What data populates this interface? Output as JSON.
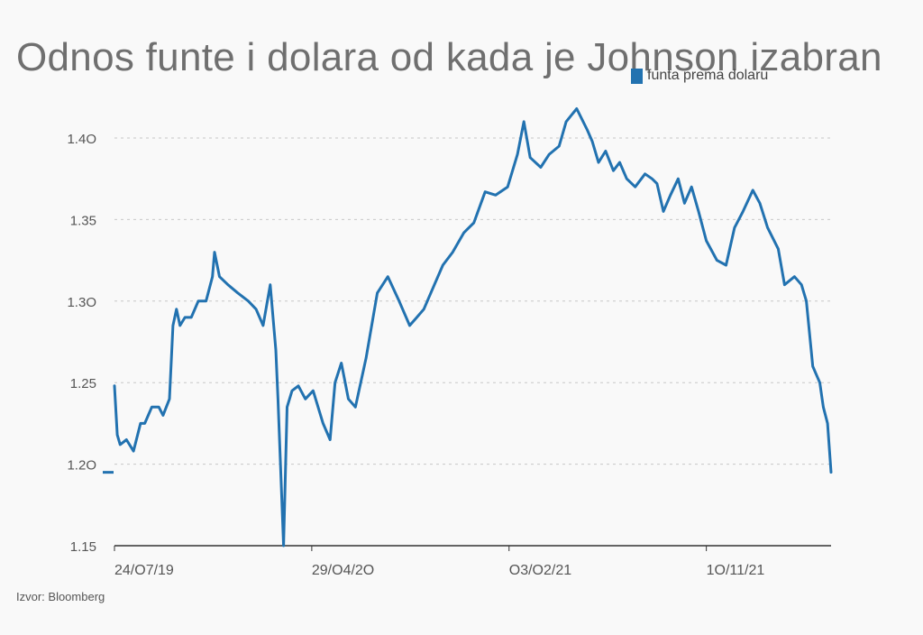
{
  "chart_data": {
    "type": "line",
    "title": "Odnos funte i dolara od kada je Johnson izabran",
    "source": "Izvor: Bloomberg",
    "series_name": "funta prema dolaru",
    "color": "#2272b0",
    "ylim": [
      1.15,
      1.43
    ],
    "y_ticks": [
      {
        "value": 1.15,
        "label": "1.15"
      },
      {
        "value": 1.2,
        "label": "1.2O"
      },
      {
        "value": 1.25,
        "label": "1.25"
      },
      {
        "value": 1.3,
        "label": "1.3O"
      },
      {
        "value": 1.35,
        "label": "1.35"
      },
      {
        "value": 1.4,
        "label": "1.4O"
      }
    ],
    "x_ticks": [
      {
        "label": "24/O7/19",
        "date": "2019-07-24"
      },
      {
        "label": "29/O4/2O",
        "date": "2020-04-29"
      },
      {
        "label": "O3/O2/21",
        "date": "2021-02-03"
      },
      {
        "label": "1O/11/21",
        "date": "2021-11-10"
      }
    ],
    "x": [
      "2019-07-24",
      "2019-07-28",
      "2019-08-01",
      "2019-08-10",
      "2019-08-20",
      "2019-08-30",
      "2019-09-05",
      "2019-09-15",
      "2019-09-25",
      "2019-10-01",
      "2019-10-10",
      "2019-10-15",
      "2019-10-20",
      "2019-10-25",
      "2019-11-01",
      "2019-11-10",
      "2019-11-20",
      "2019-12-01",
      "2019-12-10",
      "2019-12-13",
      "2019-12-20",
      "2020-01-01",
      "2020-01-15",
      "2020-01-30",
      "2020-02-10",
      "2020-02-20",
      "2020-03-01",
      "2020-03-09",
      "2020-03-12",
      "2020-03-20",
      "2020-03-25",
      "2020-04-01",
      "2020-04-10",
      "2020-04-20",
      "2020-05-01",
      "2020-05-15",
      "2020-05-25",
      "2020-06-01",
      "2020-06-10",
      "2020-06-20",
      "2020-06-30",
      "2020-07-15",
      "2020-07-31",
      "2020-08-15",
      "2020-08-31",
      "2020-09-15",
      "2020-09-25",
      "2020-10-05",
      "2020-10-20",
      "2020-11-01",
      "2020-11-15",
      "2020-12-01",
      "2020-12-15",
      "2020-12-31",
      "2021-01-15",
      "2021-02-01",
      "2021-02-15",
      "2021-02-24",
      "2021-03-05",
      "2021-03-20",
      "2021-04-01",
      "2021-04-15",
      "2021-04-25",
      "2021-05-10",
      "2021-05-25",
      "2021-06-01",
      "2021-06-10",
      "2021-06-20",
      "2021-07-01",
      "2021-07-10",
      "2021-07-20",
      "2021-08-01",
      "2021-08-15",
      "2021-08-25",
      "2021-09-01",
      "2021-09-10",
      "2021-09-20",
      "2021-10-01",
      "2021-10-10",
      "2021-10-20",
      "2021-10-30",
      "2021-11-10",
      "2021-11-25",
      "2021-12-08",
      "2021-12-20",
      "2022-01-01",
      "2022-01-15",
      "2022-01-25",
      "2022-02-05",
      "2022-02-20",
      "2022-03-01",
      "2022-03-15",
      "2022-03-25",
      "2022-04-01",
      "2022-04-10",
      "2022-04-15",
      "2022-04-20",
      "2022-04-25",
      "2022-05-01",
      "2022-05-06"
    ],
    "y": [
      1.248,
      1.218,
      1.212,
      1.215,
      1.208,
      1.225,
      1.225,
      1.235,
      1.235,
      1.23,
      1.24,
      1.285,
      1.295,
      1.285,
      1.29,
      1.29,
      1.3,
      1.3,
      1.315,
      1.33,
      1.315,
      1.31,
      1.305,
      1.3,
      1.295,
      1.285,
      1.31,
      1.27,
      1.24,
      1.15,
      1.235,
      1.245,
      1.248,
      1.24,
      1.245,
      1.225,
      1.215,
      1.25,
      1.262,
      1.24,
      1.235,
      1.265,
      1.305,
      1.315,
      1.3,
      1.285,
      1.29,
      1.295,
      1.31,
      1.322,
      1.33,
      1.342,
      1.348,
      1.367,
      1.365,
      1.37,
      1.39,
      1.41,
      1.388,
      1.382,
      1.39,
      1.395,
      1.41,
      1.418,
      1.405,
      1.398,
      1.385,
      1.392,
      1.38,
      1.385,
      1.375,
      1.37,
      1.378,
      1.375,
      1.372,
      1.355,
      1.365,
      1.375,
      1.36,
      1.37,
      1.355,
      1.337,
      1.325,
      1.322,
      1.345,
      1.355,
      1.368,
      1.36,
      1.345,
      1.332,
      1.31,
      1.315,
      1.31,
      1.3,
      1.26,
      1.255,
      1.25,
      1.235,
      1.225,
      1.195
    ]
  }
}
